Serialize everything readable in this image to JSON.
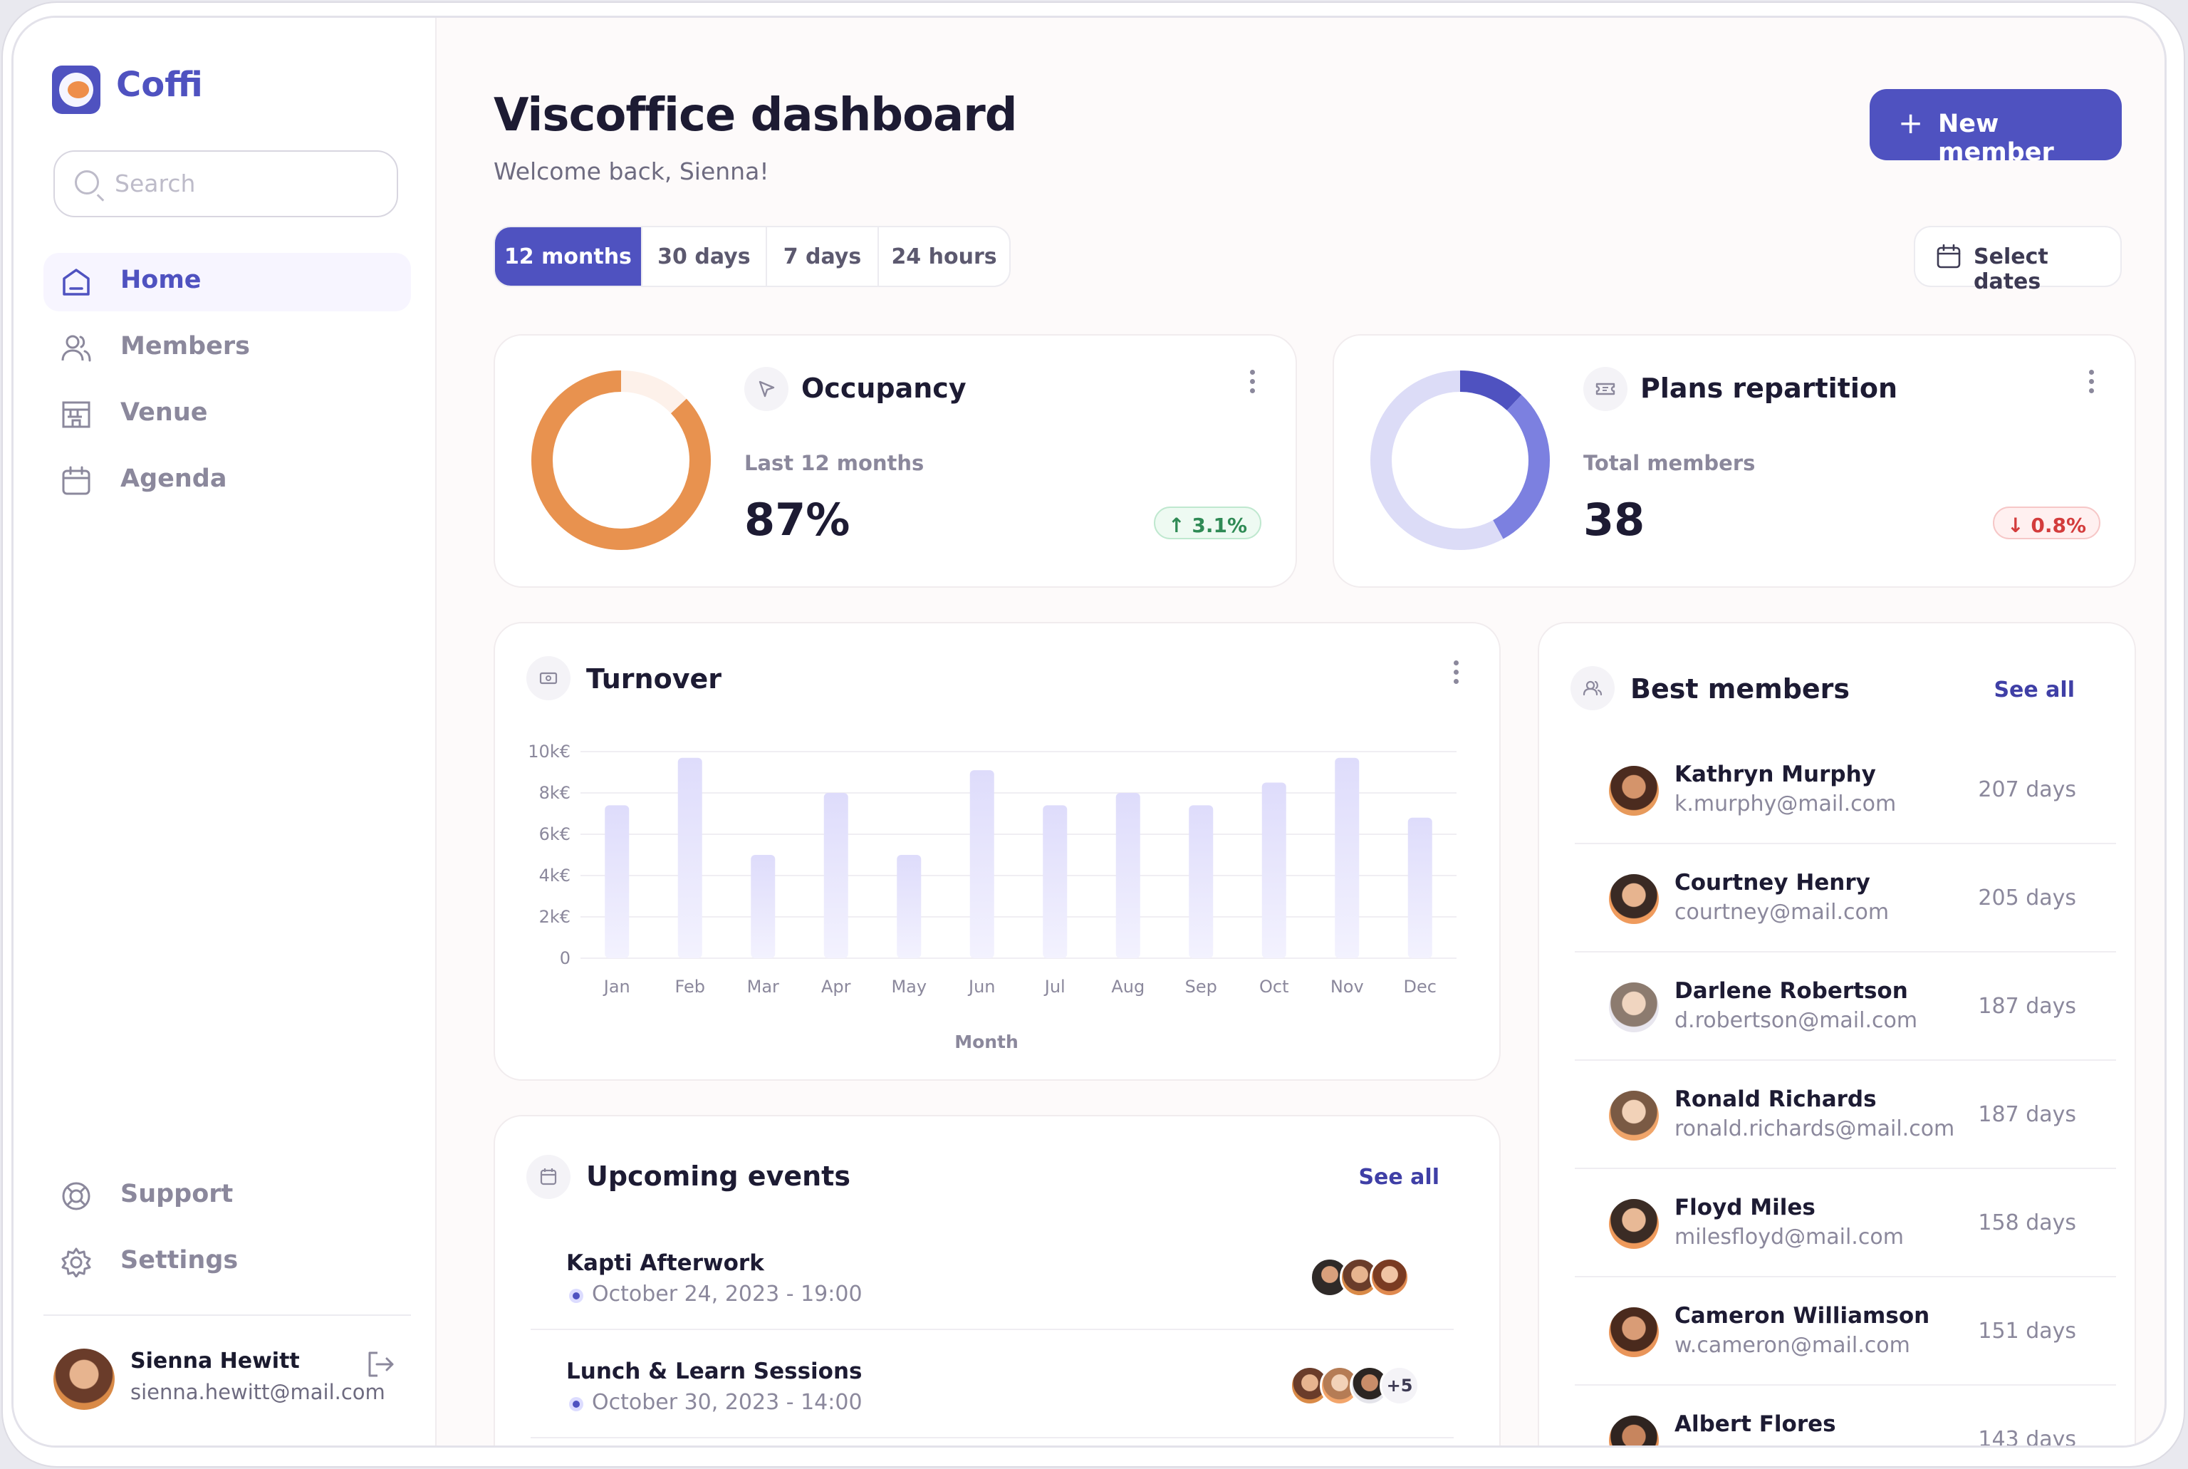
{
  "app": {
    "name": "Coffi"
  },
  "search": {
    "placeholder": "Search"
  },
  "nav": {
    "items": [
      {
        "label": "Home",
        "icon": "home-icon",
        "active": true
      },
      {
        "label": "Members",
        "icon": "users-icon",
        "active": false
      },
      {
        "label": "Venue",
        "icon": "building-icon",
        "active": false
      },
      {
        "label": "Agenda",
        "icon": "calendar-icon",
        "active": false
      }
    ],
    "footer": [
      {
        "label": "Support",
        "icon": "lifebuoy-icon"
      },
      {
        "label": "Settings",
        "icon": "gear-icon"
      }
    ]
  },
  "user": {
    "name": "Sienna Hewitt",
    "email": "sienna.hewitt@mail.com"
  },
  "header": {
    "title": "Viscoffice dashboard",
    "subtitle": "Welcome back, Sienna!",
    "new_member": "New member"
  },
  "range_tabs": [
    {
      "label": "12 months",
      "active": true
    },
    {
      "label": "30 days",
      "active": false
    },
    {
      "label": "7 days",
      "active": false
    },
    {
      "label": "24 hours",
      "active": false
    }
  ],
  "select_dates": "Select dates",
  "occupancy": {
    "title": "Occupancy",
    "caption": "Last 12 months",
    "value": "87%",
    "fraction": 0.87,
    "change": "3.1%",
    "trend": "up",
    "color": "#e8924f"
  },
  "plans": {
    "title": "Plans repartition",
    "caption": "Total members",
    "value": "38",
    "change": "0.8%",
    "trend": "down",
    "segments": [
      0.12,
      0.3,
      0.58
    ],
    "colors": [
      "#4f52c0",
      "#7c80e0",
      "#dcdcf7"
    ]
  },
  "turnover": {
    "title": "Turnover"
  },
  "chart_data": {
    "type": "bar",
    "categories": [
      "Jan",
      "Feb",
      "Mar",
      "Apr",
      "May",
      "Jun",
      "Jul",
      "Aug",
      "Sep",
      "Oct",
      "Nov",
      "Dec"
    ],
    "values": [
      7400,
      9700,
      5000,
      8000,
      5000,
      9100,
      7400,
      8000,
      7400,
      8500,
      9700,
      6800
    ],
    "xlabel": "Month",
    "ylabel": "",
    "yticks": [
      "0",
      "2k€",
      "4k€",
      "6k€",
      "8k€",
      "10k€"
    ],
    "ylim": [
      0,
      10000
    ],
    "grid": true
  },
  "events": {
    "title": "Upcoming events",
    "see_all": "See all",
    "items": [
      {
        "name": "Kapti Afterwork",
        "date": "October 24, 2023 - 19:00",
        "more": ""
      },
      {
        "name": "Lunch & Learn Sessions",
        "date": "October 30, 2023 - 14:00",
        "more": "+5"
      }
    ]
  },
  "best_members": {
    "title": "Best members",
    "see_all": "See all",
    "items": [
      {
        "name": "Kathryn Murphy",
        "email": "k.murphy@mail.com",
        "days": "207 days"
      },
      {
        "name": "Courtney Henry",
        "email": "courtney@mail.com",
        "days": "205 days"
      },
      {
        "name": "Darlene Robertson",
        "email": "d.robertson@mail.com",
        "days": "187 days"
      },
      {
        "name": "Ronald Richards",
        "email": "ronald.richards@mail.com",
        "days": "187 days"
      },
      {
        "name": "Floyd Miles",
        "email": "milesfloyd@mail.com",
        "days": "158 days"
      },
      {
        "name": "Cameron Williamson",
        "email": "w.cameron@mail.com",
        "days": "151 days"
      },
      {
        "name": "Albert Flores",
        "email": "",
        "days": "143 days"
      }
    ]
  }
}
